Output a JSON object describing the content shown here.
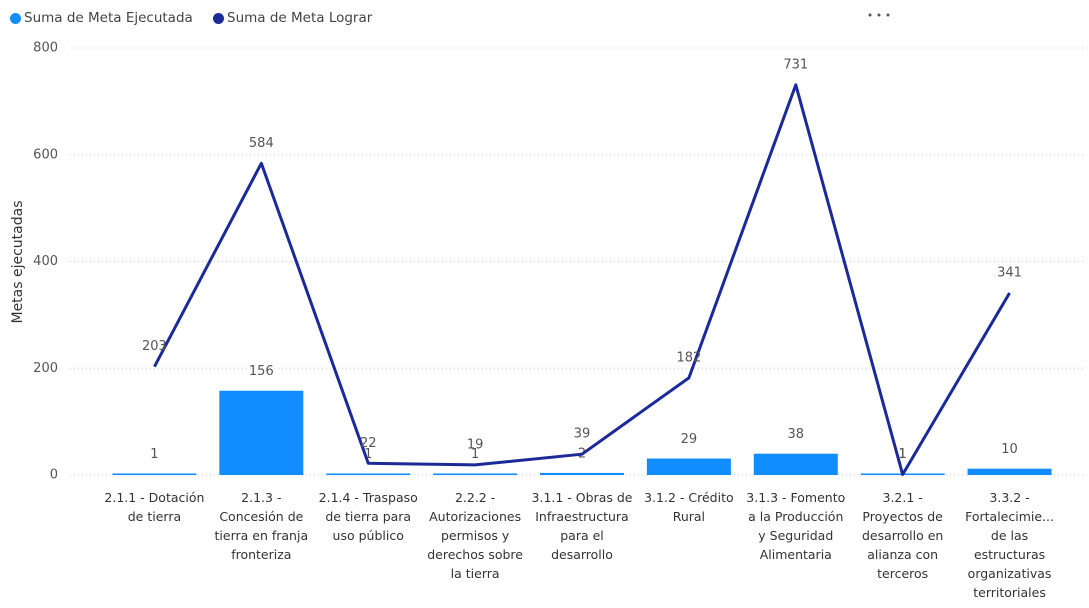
{
  "chart_data": {
    "type": "combo",
    "y_label": "Metas ejecutadas",
    "categories": [
      "2.1.1 - Dotación de tierra",
      "2.1.3 - Concesión de tierra en franja fronteriza",
      "2.1.4 - Traspaso de tierra para uso público",
      "2.2.2 - Autorizaciones permisos y derechos sobre la tierra",
      "3.1.1 - Obras de Infraestructura para el desarrollo",
      "3.1.2 - Crédito Rural",
      "3.1.3 - Fomento a la Producción y Seguridad Alimentaria",
      "3.2.1 - Proyectos de desarrollo en alianza con terceros",
      "3.3.2 - Fortalecimie... de las estructuras organizativas territoriales"
    ],
    "series": [
      {
        "name": "Suma de Meta Ejecutada",
        "kind": "bar",
        "color": "#118dff",
        "values": [
          1,
          156,
          1,
          1,
          2,
          29,
          38,
          1,
          10
        ]
      },
      {
        "name": "Suma de Meta Lograr",
        "kind": "line",
        "color": "#1b2a97",
        "values": [
          203,
          584,
          22,
          19,
          39,
          182,
          731,
          1,
          341
        ]
      }
    ],
    "ylim": [
      0,
      800
    ],
    "yticks": [
      0,
      200,
      400,
      600,
      800
    ],
    "grid": true
  }
}
